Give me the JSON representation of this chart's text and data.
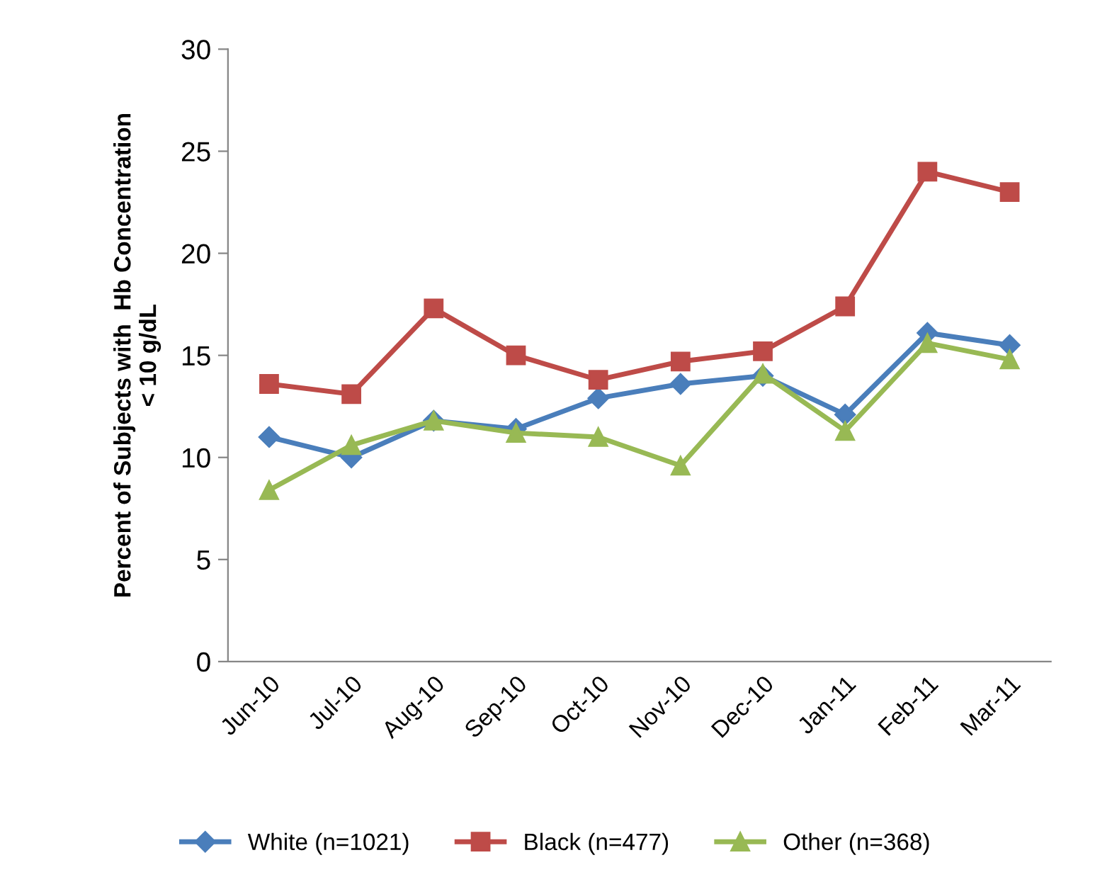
{
  "chart_data": {
    "type": "line",
    "ylabel": "Percent of Subjects with  Hb Concentration\n< 10 g/dL",
    "categories": [
      "Jun-10",
      "Jul-10",
      "Aug-10",
      "Sep-10",
      "Oct-10",
      "Nov-10",
      "Dec-10",
      "Jan-11",
      "Feb-11",
      "Mar-11"
    ],
    "series": [
      {
        "name": "White (n=1021)",
        "color": "#4a7ebb",
        "marker": "diamond",
        "values": [
          11.0,
          10.0,
          11.8,
          11.4,
          12.9,
          13.6,
          14.0,
          12.1,
          16.1,
          15.5
        ]
      },
      {
        "name": "Black (n=477)",
        "color": "#be4b48",
        "marker": "square",
        "values": [
          13.6,
          13.1,
          17.3,
          15.0,
          13.8,
          14.7,
          15.2,
          17.4,
          24.0,
          23.0
        ]
      },
      {
        "name": "Other (n=368)",
        "color": "#98b954",
        "marker": "triangle",
        "values": [
          8.4,
          10.6,
          11.8,
          11.2,
          11.0,
          9.6,
          14.1,
          11.3,
          15.6,
          14.8
        ]
      }
    ],
    "ylim": [
      0,
      30
    ],
    "yticks": [
      0,
      5,
      10,
      15,
      20,
      25,
      30
    ],
    "grid": false,
    "legend": "bottom",
    "line_style": "solid"
  }
}
